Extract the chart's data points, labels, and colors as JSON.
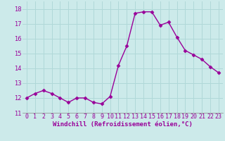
{
  "x": [
    0,
    1,
    2,
    3,
    4,
    5,
    6,
    7,
    8,
    9,
    10,
    11,
    12,
    13,
    14,
    15,
    16,
    17,
    18,
    19,
    20,
    21,
    22,
    23
  ],
  "y": [
    12.0,
    12.3,
    12.5,
    12.3,
    12.0,
    11.7,
    12.0,
    12.0,
    11.7,
    11.6,
    12.1,
    14.2,
    15.5,
    17.7,
    17.8,
    17.8,
    16.9,
    17.1,
    16.1,
    15.2,
    14.9,
    14.6,
    14.1,
    13.7
  ],
  "line_color": "#990099",
  "marker": "D",
  "marker_size": 2.5,
  "bg_color": "#cceaea",
  "grid_color": "#b0d8d8",
  "xlabel": "Windchill (Refroidissement éolien,°C)",
  "xlabel_color": "#990099",
  "tick_color": "#990099",
  "ylim": [
    11,
    18.5
  ],
  "yticks": [
    11,
    12,
    13,
    14,
    15,
    16,
    17,
    18
  ],
  "xlim": [
    -0.5,
    23.5
  ],
  "xticks": [
    0,
    1,
    2,
    3,
    4,
    5,
    6,
    7,
    8,
    9,
    10,
    11,
    12,
    13,
    14,
    15,
    16,
    17,
    18,
    19,
    20,
    21,
    22,
    23
  ],
  "tick_fontsize": 6.0,
  "xlabel_fontsize": 6.5,
  "linewidth": 1.0
}
